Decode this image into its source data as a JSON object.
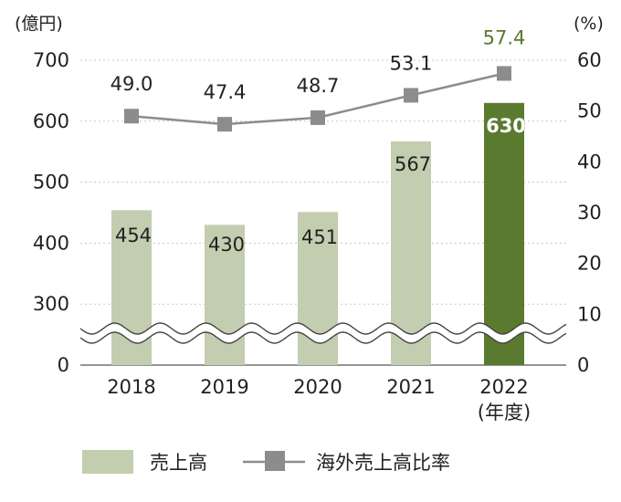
{
  "chart_data": {
    "type": "bar+line",
    "categories": [
      "2018",
      "2019",
      "2020",
      "2021",
      "2022"
    ],
    "x_unit_label": "(年度)",
    "series": [
      {
        "name": "売上高",
        "type": "bar",
        "axis": "left",
        "values": [
          454,
          430,
          451,
          567,
          630
        ],
        "labels": [
          "454",
          "430",
          "451",
          "567",
          "630"
        ],
        "color": "#c3cdb0",
        "highlight_color": "#5a7a30"
      },
      {
        "name": "海外売上高比率",
        "type": "line",
        "axis": "right",
        "values": [
          49.0,
          47.4,
          48.7,
          53.1,
          57.4
        ],
        "labels": [
          "49.0",
          "47.4",
          "48.7",
          "53.1",
          "57.4"
        ],
        "color": "#8c8c8c",
        "highlight_label_color": "#5a7a30"
      }
    ],
    "highlight_index": 4,
    "y_left": {
      "unit": "(億円)",
      "ticks": [
        "0",
        "300",
        "400",
        "500",
        "600",
        "700"
      ],
      "broken_between": [
        0,
        300
      ],
      "range": [
        0,
        700
      ]
    },
    "y_right": {
      "unit": "(%)",
      "ticks": [
        "0",
        "10",
        "20",
        "30",
        "40",
        "50",
        "60"
      ],
      "range": [
        0,
        60
      ]
    },
    "grid": "horizontal-dashed",
    "legend": {
      "position": "bottom-left",
      "items": [
        "売上高",
        "海外売上高比率"
      ]
    }
  }
}
